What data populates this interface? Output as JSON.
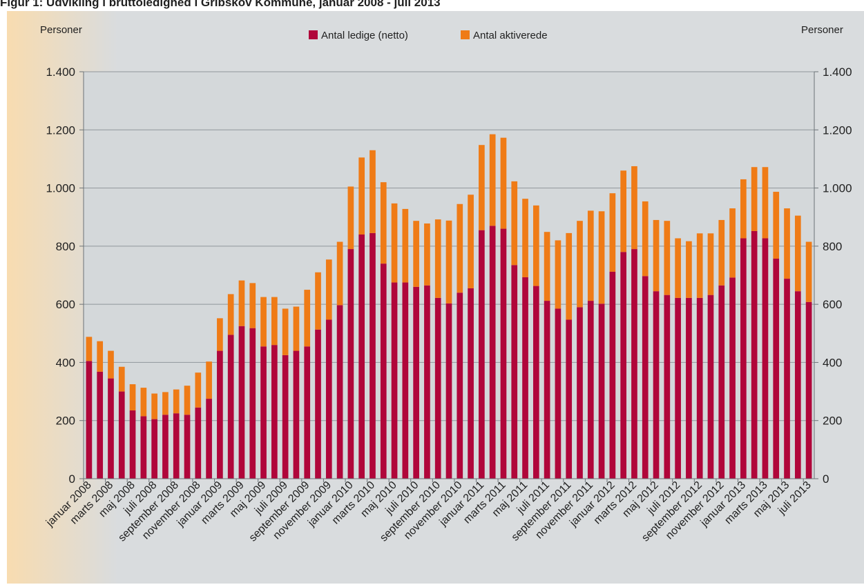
{
  "title": "Figur 1: Udvikling i bruttoledighed i Gribskov Kommune, januar 2008 - juli 2013",
  "chart_data": {
    "type": "bar",
    "stacked": true,
    "title": "Figur 1: Udvikling i bruttoledighed i Gribskov Kommune, januar 2008 - juli 2013",
    "ylabel_left": "Personer",
    "ylabel_right": "Personer",
    "ylim": [
      0,
      1400
    ],
    "yticks": [
      0,
      200,
      400,
      600,
      800,
      1000,
      1200,
      1400
    ],
    "ytick_labels": [
      "0",
      "200",
      "400",
      "600",
      "800",
      "1.000",
      "1.200",
      "1.400"
    ],
    "grid": "horizontal",
    "legend_position": "top-center",
    "colors": {
      "ledige": "#b0063a",
      "aktiverede": "#ef7b16",
      "plot_bg": "#d4d8da",
      "page_bg": "#d9dcde",
      "left_fade": "#f8dcb0"
    },
    "categories": [
      "januar 2008",
      "februar 2008",
      "marts 2008",
      "april 2008",
      "maj 2008",
      "juni 2008",
      "juli 2008",
      "august 2008",
      "september 2008",
      "oktober 2008",
      "november 2008",
      "december 2008",
      "januar 2009",
      "februar 2009",
      "marts 2009",
      "april 2009",
      "maj 2009",
      "juni 2009",
      "juli 2009",
      "august 2009",
      "september 2009",
      "oktober 2009",
      "november 2009",
      "december 2009",
      "januar 2010",
      "februar 2010",
      "marts 2010",
      "april 2010",
      "maj 2010",
      "juni 2010",
      "juli 2010",
      "august 2010",
      "september 2010",
      "oktober 2010",
      "november 2010",
      "december 2010",
      "januar 2011",
      "februar 2011",
      "marts 2011",
      "april 2011",
      "maj 2011",
      "juni 2011",
      "juli 2011",
      "august 2011",
      "september 2011",
      "oktober 2011",
      "november 2011",
      "december 2011",
      "januar 2012",
      "februar 2012",
      "marts 2012",
      "april 2012",
      "maj 2012",
      "juni 2012",
      "juli 2012",
      "august 2012",
      "september 2012",
      "oktober 2012",
      "november 2012",
      "december 2012",
      "januar 2013",
      "februar 2013",
      "marts 2013",
      "april 2013",
      "maj 2013",
      "juni 2013",
      "juli 2013"
    ],
    "xtick_labels": [
      "januar 2008",
      "marts 2008",
      "maj 2008",
      "juli 2008",
      "september 2008",
      "november 2008",
      "januar 2009",
      "marts 2009",
      "maj 2009",
      "juli 2009",
      "september 2009",
      "november 2009",
      "januar 2010",
      "marts 2010",
      "maj 2010",
      "juli 2010",
      "september 2010",
      "november 2010",
      "januar 2011",
      "marts 2011",
      "maj 2011",
      "juli 2011",
      "september 2011",
      "november 2011",
      "januar 2012",
      "marts 2012",
      "maj 2012",
      "juli 2012",
      "september 2012",
      "november 2012",
      "januar 2013",
      "marts 2013",
      "maj 2013",
      "juli 2013"
    ],
    "series": [
      {
        "name": "Antal ledige (netto)",
        "values": [
          405,
          368,
          345,
          300,
          235,
          215,
          205,
          220,
          225,
          220,
          245,
          275,
          440,
          495,
          525,
          518,
          455,
          460,
          425,
          440,
          455,
          513,
          547,
          597,
          790,
          840,
          845,
          740,
          675,
          675,
          660,
          665,
          622,
          603,
          640,
          655,
          855,
          870,
          860,
          735,
          693,
          663,
          612,
          585,
          547,
          590,
          612,
          602,
          712,
          780,
          790,
          697,
          645,
          632,
          622,
          622,
          622,
          632,
          665,
          692,
          827,
          852,
          827,
          757,
          688,
          645,
          608
        ]
      },
      {
        "name": "Antal aktiverede",
        "values": [
          83,
          105,
          95,
          85,
          90,
          98,
          88,
          78,
          82,
          100,
          120,
          128,
          112,
          140,
          157,
          155,
          170,
          165,
          160,
          152,
          195,
          197,
          207,
          218,
          215,
          265,
          285,
          280,
          272,
          253,
          227,
          213,
          270,
          285,
          305,
          322,
          293,
          315,
          313,
          288,
          270,
          277,
          237,
          235,
          298,
          297,
          310,
          318,
          270,
          280,
          285,
          257,
          245,
          255,
          205,
          195,
          222,
          212,
          225,
          238,
          203,
          220,
          245,
          230,
          242,
          260,
          207
        ]
      }
    ]
  }
}
